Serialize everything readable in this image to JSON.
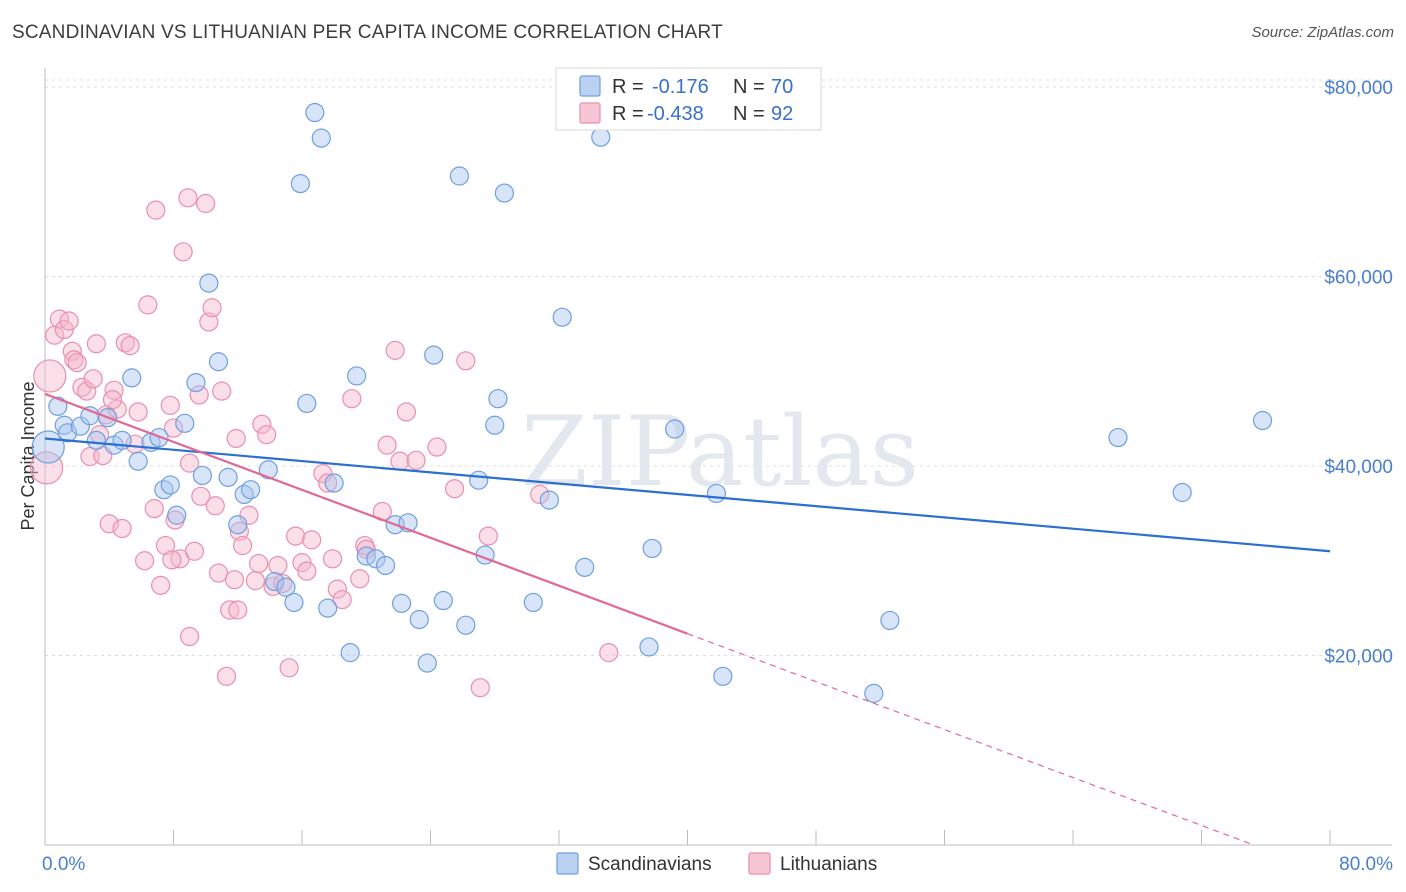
{
  "title": "SCANDINAVIAN VS LITHUANIAN PER CAPITA INCOME CORRELATION CHART",
  "source": "Source: ZipAtlas.com",
  "watermark": "ZIPatlas",
  "chart_data": {
    "type": "scatter",
    "ylabel": "Per Capita Income",
    "xlim": [
      0,
      80
    ],
    "ylim": [
      0,
      82000
    ],
    "x_tick_labels": [
      "0.0%",
      "80.0%"
    ],
    "y_ticks": [
      20000,
      40000,
      60000,
      80000
    ],
    "y_tick_labels": [
      "$20,000",
      "$40,000",
      "$60,000",
      "$80,000"
    ],
    "grid": true,
    "legend_placement": "top-center",
    "stats_legend": [
      {
        "r_label": "R =",
        "r_value": "-0.176",
        "n_label": "N =",
        "n_value": "70",
        "color": "#a9c6ef"
      },
      {
        "r_label": "R =",
        "r_value": "-0.438",
        "n_label": "N =",
        "n_value": "92",
        "color": "#f5b8cb"
      }
    ],
    "series": [
      {
        "name": "Scandinavians",
        "color": "#a9c6ef",
        "edge_color": "#6f9fe0",
        "trend_color": "#2b6fd0",
        "trend": {
          "x0": 0,
          "y0": 42900,
          "x1": 80,
          "y1": 31000
        },
        "points": [
          [
            0.2,
            42000
          ],
          [
            0.8,
            46300
          ],
          [
            1.2,
            44300
          ],
          [
            1.4,
            43500
          ],
          [
            2.2,
            44200
          ],
          [
            2.8,
            45300
          ],
          [
            3.2,
            42700
          ],
          [
            3.9,
            45100
          ],
          [
            4.3,
            42200
          ],
          [
            4.8,
            42700
          ],
          [
            5.4,
            49300
          ],
          [
            5.8,
            40500
          ],
          [
            6.6,
            42500
          ],
          [
            7.1,
            43000
          ],
          [
            7.4,
            37500
          ],
          [
            7.8,
            38000
          ],
          [
            8.2,
            34800
          ],
          [
            8.7,
            44500
          ],
          [
            9.4,
            48800
          ],
          [
            9.8,
            39000
          ],
          [
            10.2,
            59300
          ],
          [
            10.8,
            51000
          ],
          [
            11.4,
            38800
          ],
          [
            12.0,
            33800
          ],
          [
            12.4,
            37000
          ],
          [
            12.8,
            37500
          ],
          [
            13.9,
            39600
          ],
          [
            14.3,
            27800
          ],
          [
            15.0,
            27200
          ],
          [
            15.5,
            25600
          ],
          [
            15.9,
            69800
          ],
          [
            16.3,
            46600
          ],
          [
            16.8,
            77300
          ],
          [
            17.2,
            74600
          ],
          [
            17.6,
            25000
          ],
          [
            18.0,
            38200
          ],
          [
            19.0,
            20300
          ],
          [
            19.4,
            49500
          ],
          [
            20.0,
            30500
          ],
          [
            20.6,
            30200
          ],
          [
            21.2,
            29500
          ],
          [
            21.8,
            33800
          ],
          [
            22.2,
            25500
          ],
          [
            22.6,
            34000
          ],
          [
            23.3,
            23800
          ],
          [
            23.8,
            19200
          ],
          [
            24.2,
            51700
          ],
          [
            24.8,
            25800
          ],
          [
            25.8,
            70600
          ],
          [
            26.2,
            23200
          ],
          [
            27.0,
            38500
          ],
          [
            27.4,
            30600
          ],
          [
            28.0,
            44300
          ],
          [
            28.2,
            47100
          ],
          [
            28.6,
            68800
          ],
          [
            30.4,
            25600
          ],
          [
            31.4,
            36400
          ],
          [
            32.2,
            55700
          ],
          [
            33.6,
            29300
          ],
          [
            34.6,
            74700
          ],
          [
            37.6,
            20900
          ],
          [
            37.8,
            31300
          ],
          [
            39.2,
            43900
          ],
          [
            41.8,
            37100
          ],
          [
            42.2,
            17800
          ],
          [
            51.6,
            16000
          ],
          [
            52.6,
            23700
          ],
          [
            66.8,
            43000
          ],
          [
            70.8,
            37200
          ],
          [
            75.8,
            44800
          ]
        ]
      },
      {
        "name": "Lithuanians",
        "color": "#f5b8cb",
        "edge_color": "#ea8fae",
        "trend_color": "#e06a93",
        "trend": {
          "x0": 0,
          "y0": 47600,
          "x1": 40,
          "y1": 22300
        },
        "trend_dashed_to": {
          "x": 80,
          "y": -3000
        },
        "points": [
          [
            0.1,
            39800
          ],
          [
            0.3,
            49500
          ],
          [
            0.6,
            53800
          ],
          [
            0.9,
            55500
          ],
          [
            1.2,
            54400
          ],
          [
            1.5,
            55300
          ],
          [
            1.7,
            52100
          ],
          [
            1.8,
            51200
          ],
          [
            2.0,
            50900
          ],
          [
            2.3,
            48300
          ],
          [
            2.6,
            47900
          ],
          [
            2.8,
            41000
          ],
          [
            3.0,
            49200
          ],
          [
            3.2,
            52900
          ],
          [
            3.4,
            43300
          ],
          [
            3.6,
            41100
          ],
          [
            3.8,
            45400
          ],
          [
            4.0,
            33900
          ],
          [
            4.3,
            48000
          ],
          [
            4.5,
            46000
          ],
          [
            4.8,
            33400
          ],
          [
            5.0,
            53000
          ],
          [
            5.3,
            52700
          ],
          [
            5.6,
            42300
          ],
          [
            5.8,
            45700
          ],
          [
            6.2,
            30000
          ],
          [
            6.4,
            57000
          ],
          [
            6.8,
            35500
          ],
          [
            6.9,
            67000
          ],
          [
            7.2,
            27400
          ],
          [
            7.5,
            31600
          ],
          [
            7.8,
            46400
          ],
          [
            8.0,
            44000
          ],
          [
            8.1,
            34300
          ],
          [
            8.4,
            30200
          ],
          [
            8.6,
            62600
          ],
          [
            8.9,
            68300
          ],
          [
            9.0,
            40300
          ],
          [
            9.3,
            31000
          ],
          [
            9.6,
            47500
          ],
          [
            9.7,
            36800
          ],
          [
            10.0,
            67700
          ],
          [
            10.2,
            55200
          ],
          [
            10.4,
            56700
          ],
          [
            10.6,
            35800
          ],
          [
            10.8,
            28700
          ],
          [
            11.0,
            47900
          ],
          [
            11.3,
            17800
          ],
          [
            11.5,
            24800
          ],
          [
            11.8,
            28000
          ],
          [
            12.1,
            33100
          ],
          [
            12.3,
            31600
          ],
          [
            12.7,
            34800
          ],
          [
            13.1,
            27900
          ],
          [
            13.3,
            29700
          ],
          [
            13.5,
            44400
          ],
          [
            13.8,
            43300
          ],
          [
            14.2,
            27300
          ],
          [
            14.8,
            27600
          ],
          [
            15.2,
            18700
          ],
          [
            15.6,
            32600
          ],
          [
            16.0,
            29800
          ],
          [
            16.3,
            28900
          ],
          [
            16.6,
            32200
          ],
          [
            17.3,
            39200
          ],
          [
            17.6,
            38200
          ],
          [
            17.9,
            30200
          ],
          [
            18.2,
            27000
          ],
          [
            18.5,
            25900
          ],
          [
            19.1,
            47100
          ],
          [
            19.6,
            28100
          ],
          [
            19.9,
            31600
          ],
          [
            21.0,
            35200
          ],
          [
            21.3,
            42200
          ],
          [
            21.8,
            52200
          ],
          [
            22.1,
            40500
          ],
          [
            22.5,
            45700
          ],
          [
            23.1,
            40600
          ],
          [
            24.4,
            42000
          ],
          [
            25.5,
            37600
          ],
          [
            26.2,
            51100
          ],
          [
            27.6,
            32600
          ],
          [
            27.1,
            16600
          ],
          [
            30.8,
            37000
          ],
          [
            35.1,
            20300
          ],
          [
            12.0,
            24800
          ],
          [
            9.0,
            22000
          ],
          [
            4.2,
            47000
          ],
          [
            14.5,
            29500
          ],
          [
            20.0,
            31200
          ],
          [
            7.9,
            30100
          ],
          [
            11.9,
            42900
          ]
        ]
      }
    ]
  }
}
